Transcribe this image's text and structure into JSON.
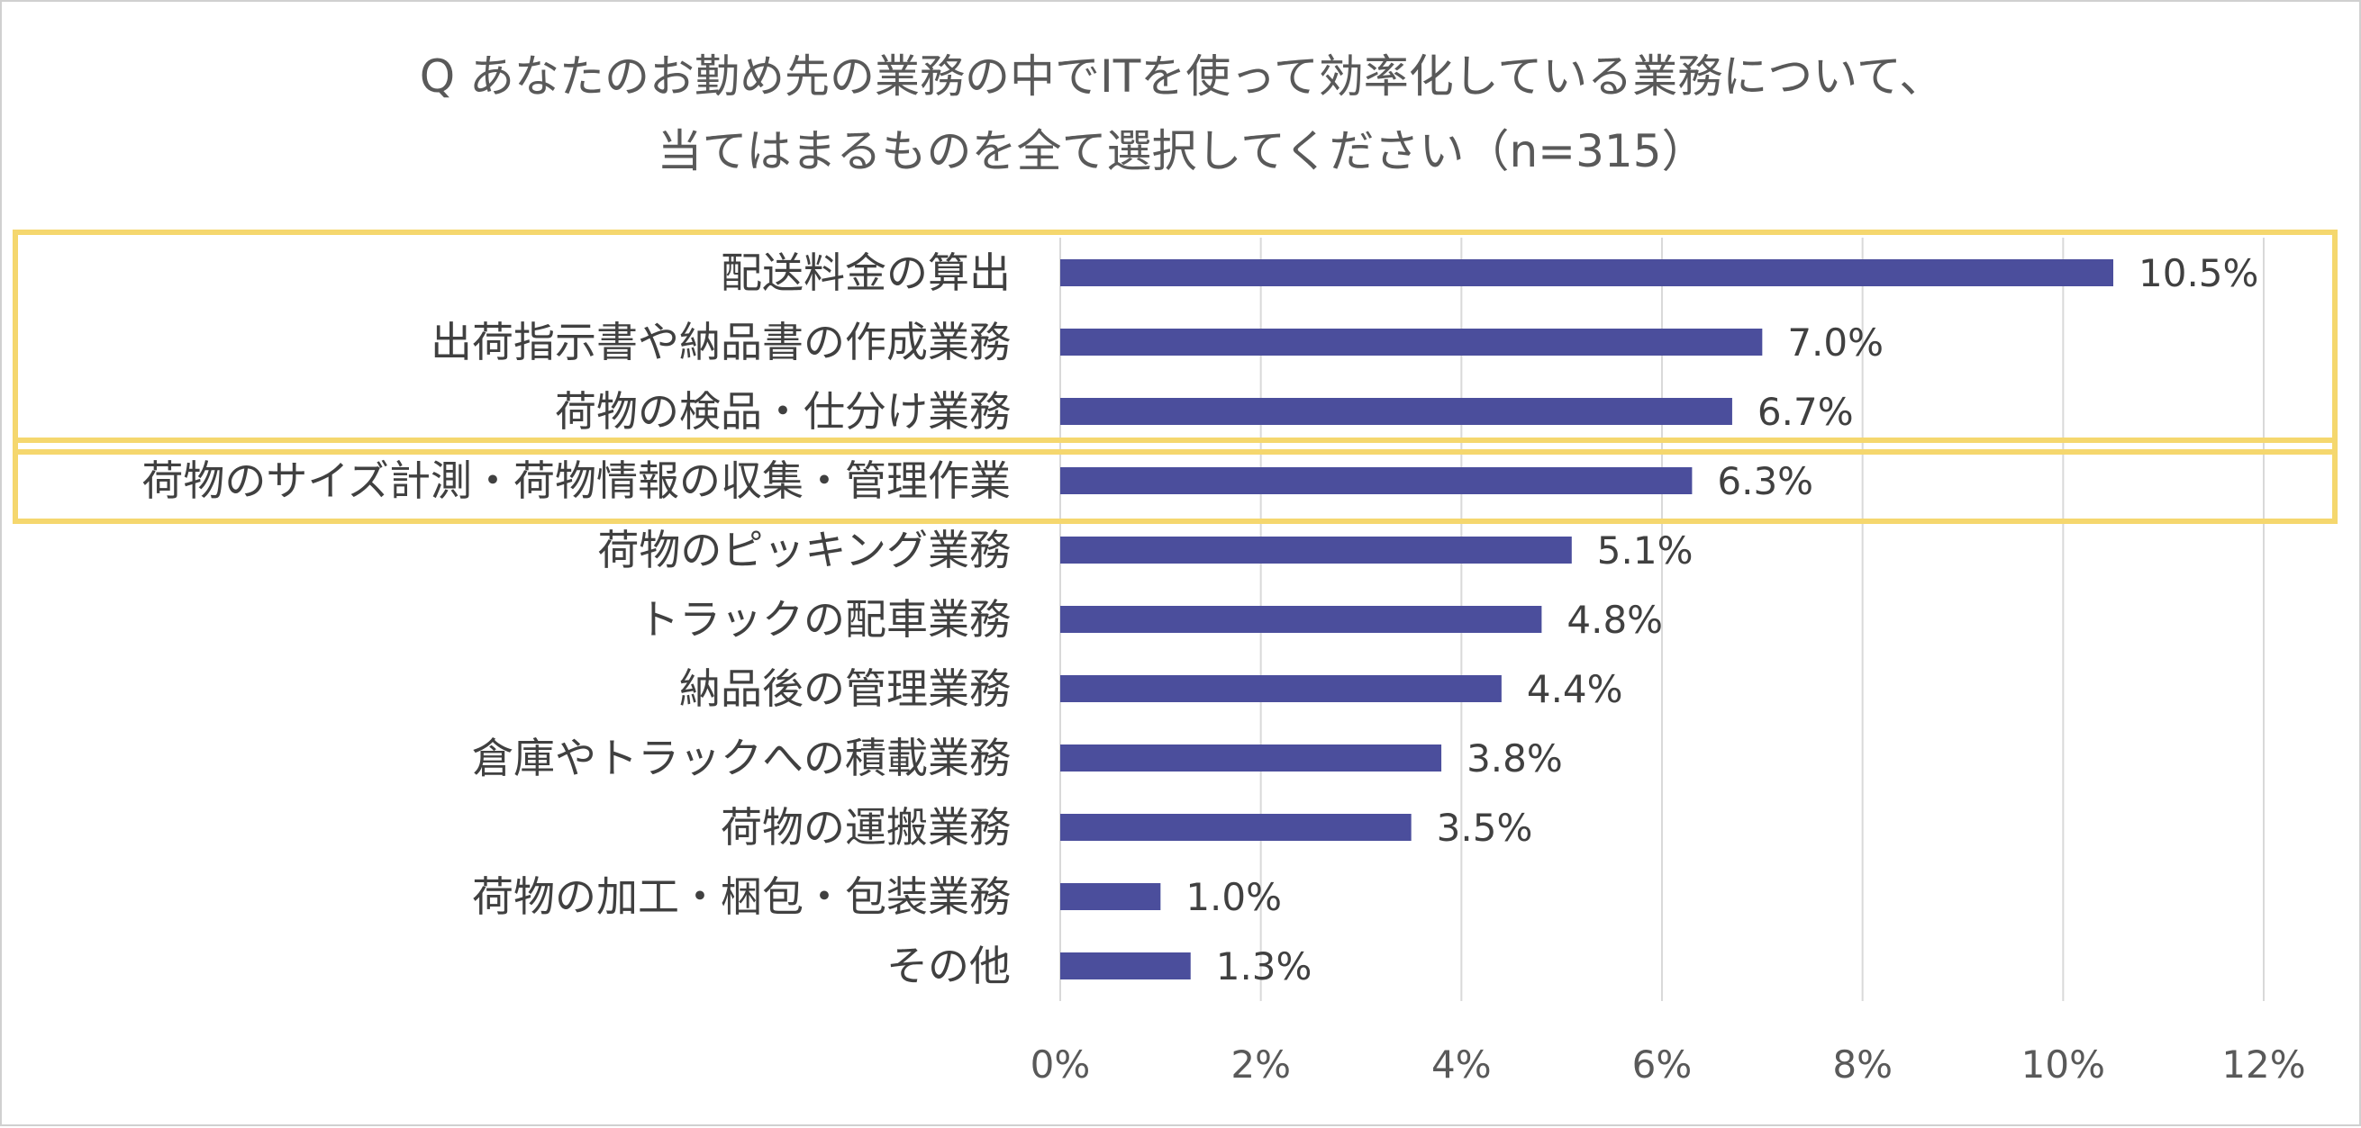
{
  "chart_data": {
    "type": "bar",
    "orientation": "horizontal",
    "title_lines": [
      "Q あなたのお勤め先の業務の中でITを使って効率化している業務について、",
      "当てはまるものを全て選択してください（n=315）"
    ],
    "categories": [
      "配送料金の算出",
      "出荷指示書や納品書の作成業務",
      "荷物の検品・仕分け業務",
      "荷物のサイズ計測・荷物情報の収集・管理作業",
      "荷物のピッキング業務",
      "トラックの配車業務",
      "納品後の管理業務",
      "倉庫やトラックへの積載業務",
      "荷物の運搬業務",
      "荷物の加工・梱包・包装業務",
      "その他"
    ],
    "values": [
      10.5,
      7.0,
      6.7,
      6.3,
      5.1,
      4.8,
      4.4,
      3.8,
      3.5,
      1.0,
      1.3
    ],
    "value_labels": [
      "10.5%",
      "7.0%",
      "6.7%",
      "6.3%",
      "5.1%",
      "4.8%",
      "4.4%",
      "3.8%",
      "3.5%",
      "1.0%",
      "1.3%"
    ],
    "x_ticks": [
      0,
      2,
      4,
      6,
      8,
      10,
      12
    ],
    "x_tick_labels": [
      "0%",
      "2%",
      "4%",
      "6%",
      "8%",
      "10%",
      "12%"
    ],
    "xlim": [
      0,
      12
    ],
    "unit": "%",
    "grid": "vertical",
    "legend": "none",
    "highlight_groups": [
      [
        0,
        2
      ],
      [
        3,
        3
      ]
    ],
    "colors": {
      "bar": "#4b4e9c",
      "grid": "#d9d9d9",
      "highlight": "#f5d76e",
      "border": "#d0d0d0"
    }
  }
}
